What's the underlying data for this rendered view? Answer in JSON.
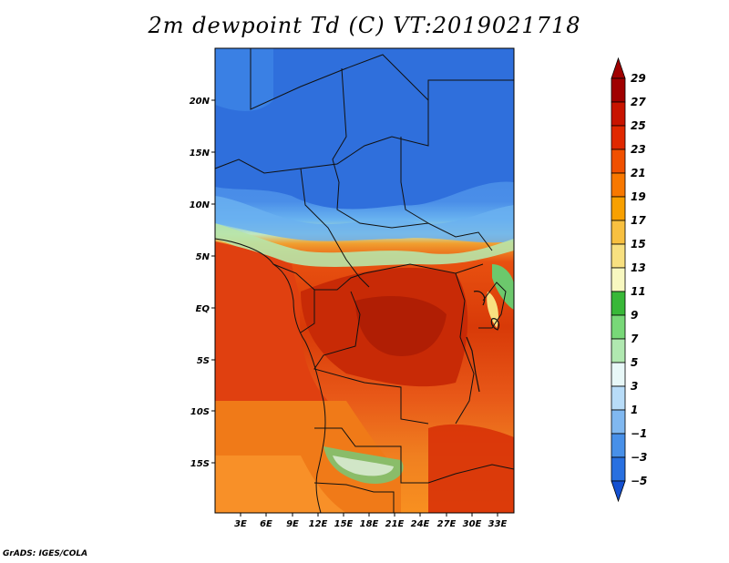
{
  "title": "2m dewpoint Td (C) VT:2019021718",
  "credit": "GrADS: IGES/COLA",
  "map": {
    "lat_ticks": [
      "20N",
      "15N",
      "10N",
      "5N",
      "EQ",
      "5S",
      "10S",
      "15S"
    ],
    "lon_ticks": [
      "3E",
      "6E",
      "9E",
      "12E",
      "15E",
      "18E",
      "21E",
      "24E",
      "27E",
      "30E",
      "33E"
    ]
  },
  "colorbar": {
    "labels": [
      "29",
      "27",
      "25",
      "23",
      "21",
      "19",
      "17",
      "15",
      "13",
      "11",
      "9",
      "7",
      "5",
      "3",
      "1",
      "−1",
      "−3",
      "−5"
    ],
    "colors": [
      "#a00000",
      "#c81400",
      "#e02800",
      "#f05000",
      "#f87800",
      "#f8a000",
      "#f8c040",
      "#f8e080",
      "#f8f8c0",
      "#38b838",
      "#78d878",
      "#b0e8b0",
      "#e8f8f8",
      "#b8dcf8",
      "#80b8f0",
      "#4890e8",
      "#2870e0",
      "#1450d0"
    ]
  }
}
